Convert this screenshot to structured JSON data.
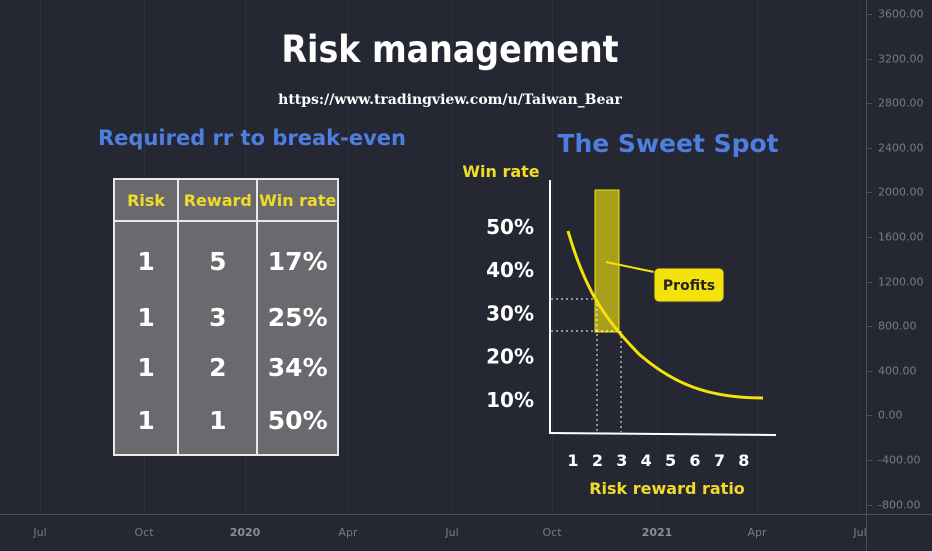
{
  "title": "Risk management",
  "url": "https://www.tradingview.com/u/Taiwan_Bear",
  "table_section": {
    "subtitle": "Required rr to break-even",
    "headers": [
      "Risk",
      "Reward",
      "Win rate"
    ],
    "rows": [
      [
        "1",
        "5",
        "17%"
      ],
      [
        "1",
        "3",
        "25%"
      ],
      [
        "1",
        "2",
        "34%"
      ],
      [
        "1",
        "1",
        "50%"
      ]
    ]
  },
  "chart_data": [
    {
      "type": "line",
      "title": "The Sweet Spot",
      "ylabel": "Win rate",
      "xlabel": "Risk reward ratio",
      "x_ticks": [
        "1",
        "2",
        "3",
        "4",
        "5",
        "6",
        "7",
        "8"
      ],
      "y_ticks": [
        "10%",
        "20%",
        "30%",
        "40%",
        "50%"
      ],
      "annotation": "Profits",
      "colors": {
        "curve": "#f5e20a",
        "profit_zone": "#a6a01a",
        "subtitle": "#4e7fe0"
      }
    },
    {
      "type": "line",
      "y_axis_ticks": [
        "3600.00",
        "3200.00",
        "2800.00",
        "2400.00",
        "2000.00",
        "1600.00",
        "1200.00",
        "800.00",
        "400.00",
        "0.00",
        "-400.00",
        "-800.00"
      ],
      "x_axis_ticks": [
        "Jul",
        "Oct",
        "2020",
        "Apr",
        "Jul",
        "Oct",
        "2021",
        "Apr",
        "Jul"
      ]
    }
  ]
}
